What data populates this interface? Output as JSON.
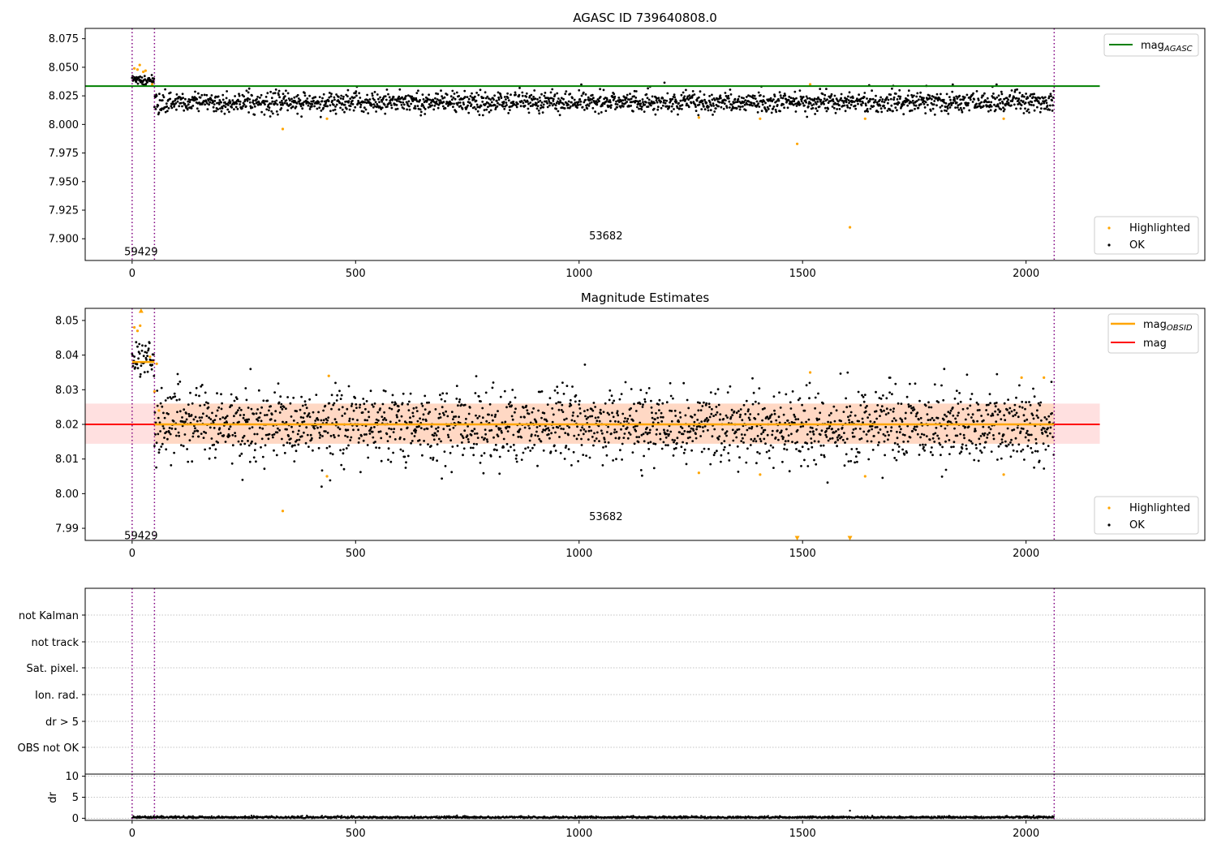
{
  "chart_data": [
    {
      "type": "scatter",
      "title": "AGASC ID 739640808.0",
      "xlabel": "",
      "ylabel": "",
      "xlim": [
        -105,
        2400
      ],
      "ylim": [
        7.881,
        8.084
      ],
      "x_ticks": [
        0,
        500,
        1000,
        1500,
        2000
      ],
      "y_ticks": [
        7.9,
        7.925,
        7.95,
        7.975,
        8.0,
        8.025,
        8.05,
        8.075
      ],
      "y_tick_labels": [
        "7.900",
        "7.925",
        "7.950",
        "7.975",
        "8.000",
        "8.025",
        "8.050",
        "8.075"
      ],
      "lines": [
        {
          "name": "mag_AGASC",
          "value": 8.0335,
          "x_range": [
            -105,
            2165
          ],
          "color": "#008000"
        }
      ],
      "vlines": [
        0,
        50,
        2063
      ],
      "annotations": [
        {
          "text": "59429",
          "x": 20,
          "y": 7.889
        },
        {
          "text": "53682",
          "x": 1060,
          "y": 7.903
        }
      ],
      "legend": {
        "position": "top-right",
        "entries": [
          {
            "label": "mag",
            "subscript": "AGASC",
            "color": "#008000"
          }
        ]
      },
      "legend2": {
        "position": "bottom-right",
        "entries": [
          {
            "label": "Highlighted",
            "color": "#ffa500"
          },
          {
            "label": "OK",
            "color": "#000000"
          }
        ]
      },
      "series": [
        {
          "name": "OK",
          "color": "#000000",
          "n": 2063,
          "early_segment": {
            "x_range": [
              0,
              50
            ],
            "mean": 8.039,
            "sd": 0.0025
          },
          "mean": 8.0195,
          "sd": 0.0045
        },
        {
          "name": "Highlighted",
          "color": "#ffa500",
          "points": [
            [
              5,
              8.049
            ],
            [
              12,
              8.048
            ],
            [
              17,
              8.052
            ],
            [
              25,
              8.046
            ],
            [
              30,
              8.047
            ],
            [
              45,
              8.035
            ],
            [
              337,
              7.996
            ],
            [
              436,
              8.005
            ],
            [
              1268,
              8.006
            ],
            [
              1405,
              8.005
            ],
            [
              1488,
              7.983
            ],
            [
              1517,
              8.035
            ],
            [
              1606,
              7.91
            ],
            [
              1640,
              8.005
            ],
            [
              1950,
              8.005
            ]
          ]
        }
      ],
      "grid": false
    },
    {
      "type": "scatter",
      "title": "Magnitude Estimates",
      "xlabel": "",
      "ylabel": "",
      "xlim": [
        -105,
        2400
      ],
      "ylim": [
        7.9865,
        8.0535
      ],
      "x_ticks": [
        0,
        500,
        1000,
        1500,
        2000
      ],
      "y_ticks": [
        7.99,
        8.0,
        8.01,
        8.02,
        8.03,
        8.04,
        8.05
      ],
      "y_tick_labels": [
        "7.99",
        "8.00",
        "8.01",
        "8.02",
        "8.03",
        "8.04",
        "8.05"
      ],
      "lines": [
        {
          "name": "mag",
          "value": 8.02,
          "x_range": [
            -105,
            2165
          ],
          "color": "#ff0000"
        }
      ],
      "bands": [
        {
          "y_range": [
            8.0144,
            8.026
          ],
          "x_range": [
            -105,
            2165
          ],
          "color": "#ff0000",
          "opacity": 0.12
        },
        {
          "y_range": [
            8.0144,
            8.026
          ],
          "x_range": [
            50,
            2063
          ],
          "color": "#ffa500",
          "opacity": 0.12
        }
      ],
      "obsid_segments": [
        {
          "x_range": [
            0,
            50
          ],
          "value": 8.038
        },
        {
          "x_range": [
            50,
            2063
          ],
          "value": 8.02
        }
      ],
      "vlines": [
        0,
        50,
        2063
      ],
      "annotations": [
        {
          "text": "59429",
          "x": 20,
          "y": 7.988
        },
        {
          "text": "53682",
          "x": 1060,
          "y": 7.9935
        }
      ],
      "legend": {
        "position": "top-right",
        "entries": [
          {
            "label": "mag",
            "subscript": "OBSID",
            "color": "#ffa500"
          },
          {
            "label": "mag",
            "subscript": "",
            "color": "#ff0000"
          }
        ]
      },
      "legend2": {
        "position": "bottom-right",
        "entries": [
          {
            "label": "Highlighted",
            "color": "#ffa500"
          },
          {
            "label": "OK",
            "color": "#000000"
          }
        ]
      },
      "series": [
        {
          "name": "OK",
          "color": "#000000",
          "n": 2063,
          "early_segment": {
            "x_range": [
              0,
              50
            ],
            "mean": 8.038,
            "sd": 0.0028
          },
          "mean": 8.0195,
          "sd": 0.0052
        },
        {
          "name": "Highlighted",
          "color": "#ffa500",
          "points": [
            [
              5,
              8.048
            ],
            [
              12,
              8.047
            ],
            [
              18,
              8.0485
            ],
            [
              40,
              8.0395
            ],
            [
              50,
              8.0295
            ],
            [
              55,
              8.0375
            ],
            [
              60,
              8.024
            ],
            [
              337,
              7.995
            ],
            [
              436,
              8.005
            ],
            [
              440,
              8.034
            ],
            [
              1268,
              8.006
            ],
            [
              1405,
              8.0055
            ],
            [
              1517,
              8.035
            ],
            [
              1640,
              8.005
            ],
            [
              1950,
              8.0055
            ],
            [
              1990,
              8.0335
            ],
            [
              2040,
              8.0335
            ]
          ]
        },
        {
          "name": "Highlighted (out of range)",
          "color": "#ffa500",
          "marker": "triangle",
          "points": [
            [
              20,
              8.0535
            ],
            [
              1488,
              7.9865
            ],
            [
              1606,
              7.9865
            ]
          ]
        }
      ],
      "grid": false
    },
    {
      "type": "scatter",
      "title": "",
      "categories": [
        "not Kalman",
        "not track",
        "Sat. pixel.",
        "Ion. rad.",
        "dr > 5",
        "OBS not OK"
      ],
      "xlim": [
        -105,
        2400
      ],
      "vlines": [
        0,
        50,
        2063
      ],
      "grid": true,
      "series": []
    },
    {
      "type": "scatter",
      "title": "",
      "xlabel": "",
      "ylabel": "dr",
      "xlim": [
        -105,
        2400
      ],
      "ylim": [
        -0.5,
        10.5
      ],
      "x_ticks": [
        0,
        500,
        1000,
        1500,
        2000
      ],
      "y_ticks": [
        0,
        5,
        10
      ],
      "y_tick_labels": [
        "0",
        "5",
        "10"
      ],
      "vlines": [
        0,
        50,
        2063
      ],
      "grid": true,
      "series": [
        {
          "name": "dr",
          "color": "#000000",
          "n": 2063,
          "mean": 0.2,
          "sd": 0.15,
          "outliers": [
            [
              1606,
              1.8
            ]
          ]
        }
      ]
    }
  ]
}
